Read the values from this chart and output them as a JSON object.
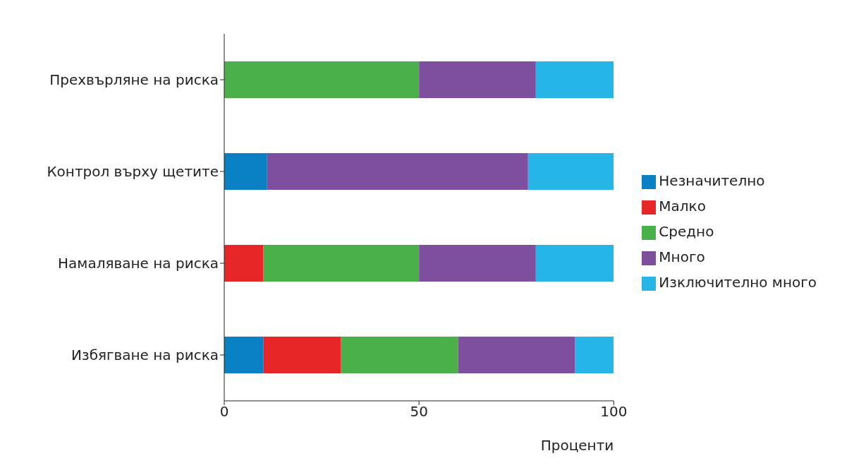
{
  "chart_data": {
    "type": "bar",
    "orientation": "horizontal",
    "stacked": true,
    "categories": [
      "Прехвърляне на риска",
      "Контрол върху щетите",
      "Намаляване на риска",
      "Избягване на риска"
    ],
    "series": [
      {
        "name": "Незначително",
        "color": "#0a7fc4",
        "values": [
          0,
          11,
          0,
          10
        ]
      },
      {
        "name": "Малко",
        "color": "#e8262a",
        "values": [
          0,
          0,
          10,
          20
        ]
      },
      {
        "name": "Средно",
        "color": "#4cb04a",
        "values": [
          50,
          0,
          40,
          30
        ]
      },
      {
        "name": "Много",
        "color": "#7f4f9f",
        "values": [
          30,
          67,
          30,
          30
        ]
      },
      {
        "name": "Изключително много",
        "color": "#27b4e6",
        "values": [
          20,
          22,
          20,
          10
        ]
      }
    ],
    "xlim": [
      0,
      100
    ],
    "xticks": [
      0,
      50,
      100
    ],
    "xlabel": "Проценти",
    "grid": false,
    "legend": "right"
  }
}
